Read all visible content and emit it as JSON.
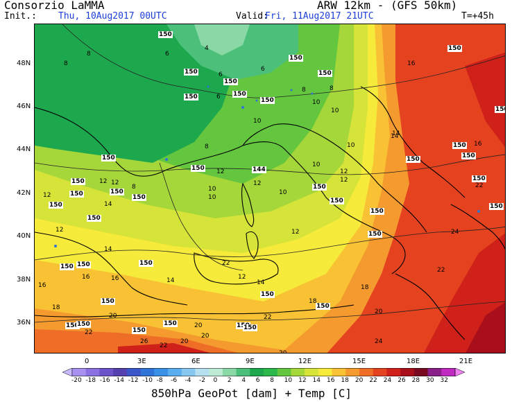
{
  "header": {
    "title": "Consorzio LaMMA",
    "model": "ARW 12km - (GFS 50km)",
    "init_label": "Init.:",
    "init_value": "Thu, 10Aug2017 00UTC",
    "valid_label": "Valid:",
    "valid_value": "Fri, 11Aug2017 21UTC",
    "forecast_hour": "T=+45h"
  },
  "axes": {
    "lat_labels": [
      "48N",
      "46N",
      "44N",
      "42N",
      "40N",
      "38N",
      "36N"
    ],
    "lon_labels": [
      "0",
      "3E",
      "6E",
      "9E",
      "12E",
      "15E",
      "18E",
      "21E"
    ]
  },
  "colorbar": {
    "title": "850hPa GeoPot [dam] + Temp [C]",
    "ticks": [
      "-20",
      "-18",
      "-16",
      "-14",
      "-12",
      "-10",
      "-8",
      "-6",
      "-4",
      "-2",
      "0",
      "2",
      "4",
      "6",
      "8",
      "10",
      "12",
      "14",
      "16",
      "18",
      "20",
      "22",
      "24",
      "26",
      "28",
      "30",
      "32"
    ],
    "colors": [
      "#c8b8ff",
      "#a890f0",
      "#8a70e0",
      "#6c52c8",
      "#5540b0",
      "#3a56c8",
      "#2f74d6",
      "#3b91e6",
      "#5aaef0",
      "#86c8f2",
      "#b6e0f0",
      "#bfead6",
      "#8ad8a6",
      "#4cc07a",
      "#1ea84e",
      "#2cb84a",
      "#63c63e",
      "#a5d63a",
      "#d6e43a",
      "#f6ea3a",
      "#f8c234",
      "#f49a2e",
      "#ee6e28",
      "#e5431f",
      "#d0201a",
      "#a80f1a",
      "#7a0a20",
      "#8a1e8a",
      "#c02ac0",
      "#f080f0"
    ]
  },
  "map_labels": {
    "temperature": [
      "8",
      "8",
      "6",
      "6",
      "6",
      "6",
      "4",
      "8",
      "8",
      "10",
      "10",
      "10",
      "10",
      "10",
      "10",
      "8",
      "12",
      "12",
      "12",
      "12",
      "12",
      "12",
      "12",
      "14",
      "14",
      "14",
      "14",
      "16",
      "16",
      "16",
      "16",
      "16",
      "18",
      "18",
      "18",
      "20",
      "20",
      "20",
      "20",
      "20",
      "20",
      "22",
      "22",
      "22",
      "22",
      "22",
      "22",
      "24",
      "24",
      "26",
      "10",
      "12",
      "12",
      "14",
      "14",
      "12",
      "8",
      "10"
    ],
    "geopotential": [
      "150",
      "150",
      "150",
      "150",
      "150",
      "150",
      "150",
      "150",
      "150",
      "150",
      "150",
      "150",
      "150",
      "150",
      "150",
      "144",
      "150",
      "150",
      "150",
      "150",
      "150",
      "150",
      "150",
      "150",
      "150",
      "150",
      "150",
      "150",
      "150",
      "150",
      "150",
      "150",
      "150",
      "150",
      "150",
      "150",
      "150",
      "150",
      "150",
      "150"
    ]
  }
}
